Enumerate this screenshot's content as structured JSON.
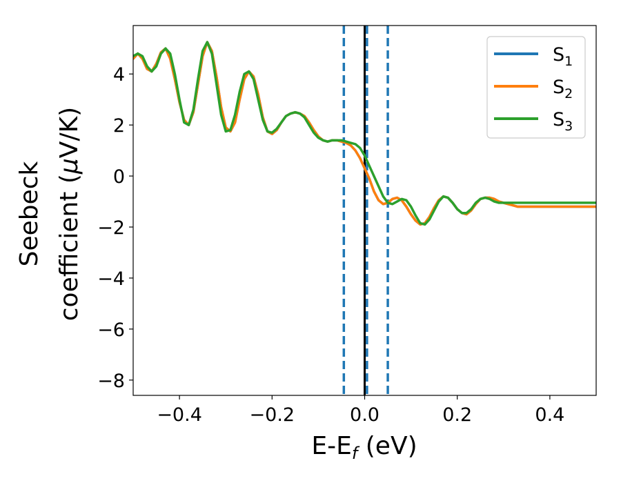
{
  "chart_data": {
    "type": "line",
    "xlabel": "E-E",
    "xlabel_sub": "f",
    "xlabel_unit": " (eV)",
    "ylabel_line1": "Seebeck",
    "ylabel_line2_a": "coefficient  (",
    "ylabel_line2_mu": "μ",
    "ylabel_line2_b": "V/K)",
    "xlim": [
      -0.5,
      0.5
    ],
    "ylim": [
      -8.6,
      5.9
    ],
    "xticks": [
      -0.4,
      -0.2,
      0.0,
      0.2,
      0.4
    ],
    "xtick_labels": [
      "−0.4",
      "−0.2",
      "0.0",
      "0.2",
      "0.4"
    ],
    "yticks": [
      -8,
      -6,
      -4,
      -2,
      0,
      2,
      4
    ],
    "ytick_labels": [
      "−8",
      "−6",
      "−4",
      "−2",
      "0",
      "2",
      "4"
    ],
    "grid": false,
    "legend_position": "top-right",
    "vlines": [
      {
        "x": -0.045,
        "style": "dashed",
        "color": "#1f77b4"
      },
      {
        "x": 0.0,
        "style": "solid",
        "color": "#000000"
      },
      {
        "x": 0.005,
        "style": "dashed",
        "color": "#1f77b4"
      },
      {
        "x": 0.05,
        "style": "dashed",
        "color": "#1f77b4"
      }
    ],
    "series": [
      {
        "name": "S",
        "sub": "1",
        "color": "#1f77b4",
        "x": [
          -0.5,
          -0.49,
          -0.48,
          -0.47,
          -0.46,
          -0.45,
          -0.44,
          -0.43,
          -0.42,
          -0.41,
          -0.4,
          -0.39,
          -0.38,
          -0.37,
          -0.36,
          -0.35,
          -0.34,
          -0.33,
          -0.32,
          -0.31,
          -0.3,
          -0.29,
          -0.28,
          -0.27,
          -0.26,
          -0.25,
          -0.24,
          -0.23,
          -0.22,
          -0.21,
          -0.2,
          -0.19,
          -0.18,
          -0.17,
          -0.16,
          -0.15,
          -0.14,
          -0.13,
          -0.12,
          -0.11,
          -0.1,
          -0.09,
          -0.08,
          -0.07,
          -0.06,
          -0.05,
          -0.04,
          -0.03,
          -0.02,
          -0.01,
          0.0,
          0.01,
          0.02,
          0.03,
          0.04,
          0.05,
          0.06,
          0.07,
          0.08,
          0.09,
          0.1,
          0.11,
          0.12,
          0.13,
          0.14,
          0.15,
          0.16,
          0.17,
          0.18,
          0.19,
          0.2,
          0.21,
          0.22,
          0.23,
          0.24,
          0.25,
          0.26,
          0.27,
          0.28,
          0.29,
          0.3,
          0.31,
          0.32,
          0.33,
          0.34,
          0.35,
          0.36,
          0.37,
          0.38,
          0.39,
          0.4,
          0.41,
          0.42,
          0.43,
          0.44,
          0.45,
          0.46,
          0.47,
          0.48,
          0.49,
          0.5
        ],
        "y": [
          4.6,
          4.8,
          4.6,
          4.2,
          4.1,
          4.4,
          4.85,
          5.0,
          4.6,
          3.8,
          2.9,
          2.2,
          2.0,
          2.5,
          3.6,
          4.7,
          5.25,
          4.9,
          3.9,
          2.7,
          1.9,
          1.75,
          2.1,
          3.0,
          3.8,
          4.1,
          3.9,
          3.2,
          2.3,
          1.75,
          1.65,
          1.8,
          2.1,
          2.35,
          2.45,
          2.5,
          2.45,
          2.35,
          2.1,
          1.8,
          1.55,
          1.4,
          1.35,
          1.4,
          1.4,
          1.35,
          1.3,
          1.2,
          1.0,
          0.7,
          0.3,
          -0.1,
          -0.6,
          -0.95,
          -1.1,
          -1.05,
          -0.9,
          -0.85,
          -0.95,
          -1.2,
          -1.5,
          -1.75,
          -1.9,
          -1.85,
          -1.6,
          -1.25,
          -0.95,
          -0.8,
          -0.85,
          -1.05,
          -1.3,
          -1.45,
          -1.5,
          -1.35,
          -1.1,
          -0.9,
          -0.85,
          -0.85,
          -0.9,
          -1.0,
          -1.05,
          -1.1,
          -1.15,
          -1.2,
          -1.2,
          -1.2,
          -1.2,
          -1.2,
          -1.2,
          -1.2,
          -1.2,
          -1.2,
          -1.2,
          -1.2,
          -1.2,
          -1.2,
          -1.2,
          -1.2,
          -1.2,
          -1.2,
          -1.2
        ]
      },
      {
        "name": "S",
        "sub": "2",
        "color": "#ff7f0e",
        "x": [
          -0.5,
          -0.49,
          -0.48,
          -0.47,
          -0.46,
          -0.45,
          -0.44,
          -0.43,
          -0.42,
          -0.41,
          -0.4,
          -0.39,
          -0.38,
          -0.37,
          -0.36,
          -0.35,
          -0.34,
          -0.33,
          -0.32,
          -0.31,
          -0.3,
          -0.29,
          -0.28,
          -0.27,
          -0.26,
          -0.25,
          -0.24,
          -0.23,
          -0.22,
          -0.21,
          -0.2,
          -0.19,
          -0.18,
          -0.17,
          -0.16,
          -0.15,
          -0.14,
          -0.13,
          -0.12,
          -0.11,
          -0.1,
          -0.09,
          -0.08,
          -0.07,
          -0.06,
          -0.05,
          -0.04,
          -0.03,
          -0.02,
          -0.01,
          0.0,
          0.01,
          0.02,
          0.03,
          0.04,
          0.05,
          0.06,
          0.07,
          0.08,
          0.09,
          0.1,
          0.11,
          0.12,
          0.13,
          0.14,
          0.15,
          0.16,
          0.17,
          0.18,
          0.19,
          0.2,
          0.21,
          0.22,
          0.23,
          0.24,
          0.25,
          0.26,
          0.27,
          0.28,
          0.29,
          0.3,
          0.31,
          0.32,
          0.33,
          0.34,
          0.35,
          0.36,
          0.37,
          0.38,
          0.39,
          0.4,
          0.41,
          0.42,
          0.43,
          0.44,
          0.45,
          0.46,
          0.47,
          0.48,
          0.49,
          0.5
        ],
        "y": [
          4.6,
          4.8,
          4.6,
          4.2,
          4.1,
          4.4,
          4.85,
          5.0,
          4.6,
          3.8,
          2.9,
          2.2,
          2.0,
          2.5,
          3.6,
          4.7,
          5.25,
          4.9,
          3.9,
          2.7,
          1.9,
          1.75,
          2.1,
          3.0,
          3.8,
          4.1,
          3.9,
          3.2,
          2.3,
          1.75,
          1.65,
          1.8,
          2.1,
          2.35,
          2.45,
          2.5,
          2.45,
          2.35,
          2.1,
          1.8,
          1.55,
          1.4,
          1.35,
          1.4,
          1.4,
          1.35,
          1.3,
          1.2,
          1.0,
          0.7,
          0.3,
          -0.1,
          -0.6,
          -0.95,
          -1.1,
          -1.05,
          -0.9,
          -0.85,
          -0.95,
          -1.2,
          -1.5,
          -1.75,
          -1.9,
          -1.85,
          -1.6,
          -1.25,
          -0.95,
          -0.8,
          -0.85,
          -1.05,
          -1.3,
          -1.45,
          -1.5,
          -1.35,
          -1.1,
          -0.9,
          -0.85,
          -0.85,
          -0.9,
          -1.0,
          -1.05,
          -1.1,
          -1.15,
          -1.2,
          -1.2,
          -1.2,
          -1.2,
          -1.2,
          -1.2,
          -1.2,
          -1.2,
          -1.2,
          -1.2,
          -1.2,
          -1.2,
          -1.2,
          -1.2,
          -1.2,
          -1.2,
          -1.2,
          -1.2
        ]
      },
      {
        "name": "S",
        "sub": "3",
        "color": "#2ca02c",
        "x": [
          -0.5,
          -0.49,
          -0.48,
          -0.47,
          -0.46,
          -0.45,
          -0.44,
          -0.43,
          -0.42,
          -0.41,
          -0.4,
          -0.39,
          -0.38,
          -0.37,
          -0.36,
          -0.35,
          -0.34,
          -0.33,
          -0.32,
          -0.31,
          -0.3,
          -0.29,
          -0.28,
          -0.27,
          -0.26,
          -0.25,
          -0.24,
          -0.23,
          -0.22,
          -0.21,
          -0.2,
          -0.19,
          -0.18,
          -0.17,
          -0.16,
          -0.15,
          -0.14,
          -0.13,
          -0.12,
          -0.11,
          -0.1,
          -0.09,
          -0.08,
          -0.07,
          -0.06,
          -0.05,
          -0.04,
          -0.03,
          -0.02,
          -0.01,
          0.0,
          0.01,
          0.02,
          0.03,
          0.04,
          0.05,
          0.06,
          0.07,
          0.08,
          0.09,
          0.1,
          0.11,
          0.12,
          0.13,
          0.14,
          0.15,
          0.16,
          0.17,
          0.18,
          0.19,
          0.2,
          0.21,
          0.22,
          0.23,
          0.24,
          0.25,
          0.26,
          0.27,
          0.28,
          0.29,
          0.3,
          0.31,
          0.32,
          0.33,
          0.34,
          0.35,
          0.36,
          0.37,
          0.38,
          0.39,
          0.4,
          0.41,
          0.42,
          0.43,
          0.44,
          0.45,
          0.46,
          0.47,
          0.48,
          0.49,
          0.5
        ],
        "y": [
          4.7,
          4.8,
          4.7,
          4.3,
          4.1,
          4.3,
          4.8,
          5.0,
          4.8,
          4.0,
          3.0,
          2.1,
          2.0,
          2.6,
          3.8,
          4.9,
          5.25,
          4.8,
          3.6,
          2.4,
          1.75,
          1.8,
          2.4,
          3.3,
          4.0,
          4.1,
          3.8,
          3.0,
          2.2,
          1.75,
          1.7,
          1.85,
          2.1,
          2.35,
          2.45,
          2.5,
          2.45,
          2.3,
          2.0,
          1.7,
          1.5,
          1.4,
          1.35,
          1.4,
          1.4,
          1.4,
          1.35,
          1.3,
          1.25,
          1.1,
          0.8,
          0.4,
          0.0,
          -0.4,
          -0.8,
          -1.05,
          -1.1,
          -1.0,
          -0.9,
          -0.95,
          -1.2,
          -1.55,
          -1.85,
          -1.9,
          -1.7,
          -1.35,
          -1.0,
          -0.8,
          -0.85,
          -1.05,
          -1.3,
          -1.45,
          -1.45,
          -1.3,
          -1.05,
          -0.9,
          -0.85,
          -0.9,
          -1.0,
          -1.05,
          -1.05,
          -1.05,
          -1.05,
          -1.05,
          -1.05,
          -1.05,
          -1.05,
          -1.05,
          -1.05,
          -1.05,
          -1.05,
          -1.05,
          -1.05,
          -1.05,
          -1.05,
          -1.05,
          -1.05,
          -1.05,
          -1.05,
          -1.05,
          -1.05
        ]
      }
    ]
  }
}
